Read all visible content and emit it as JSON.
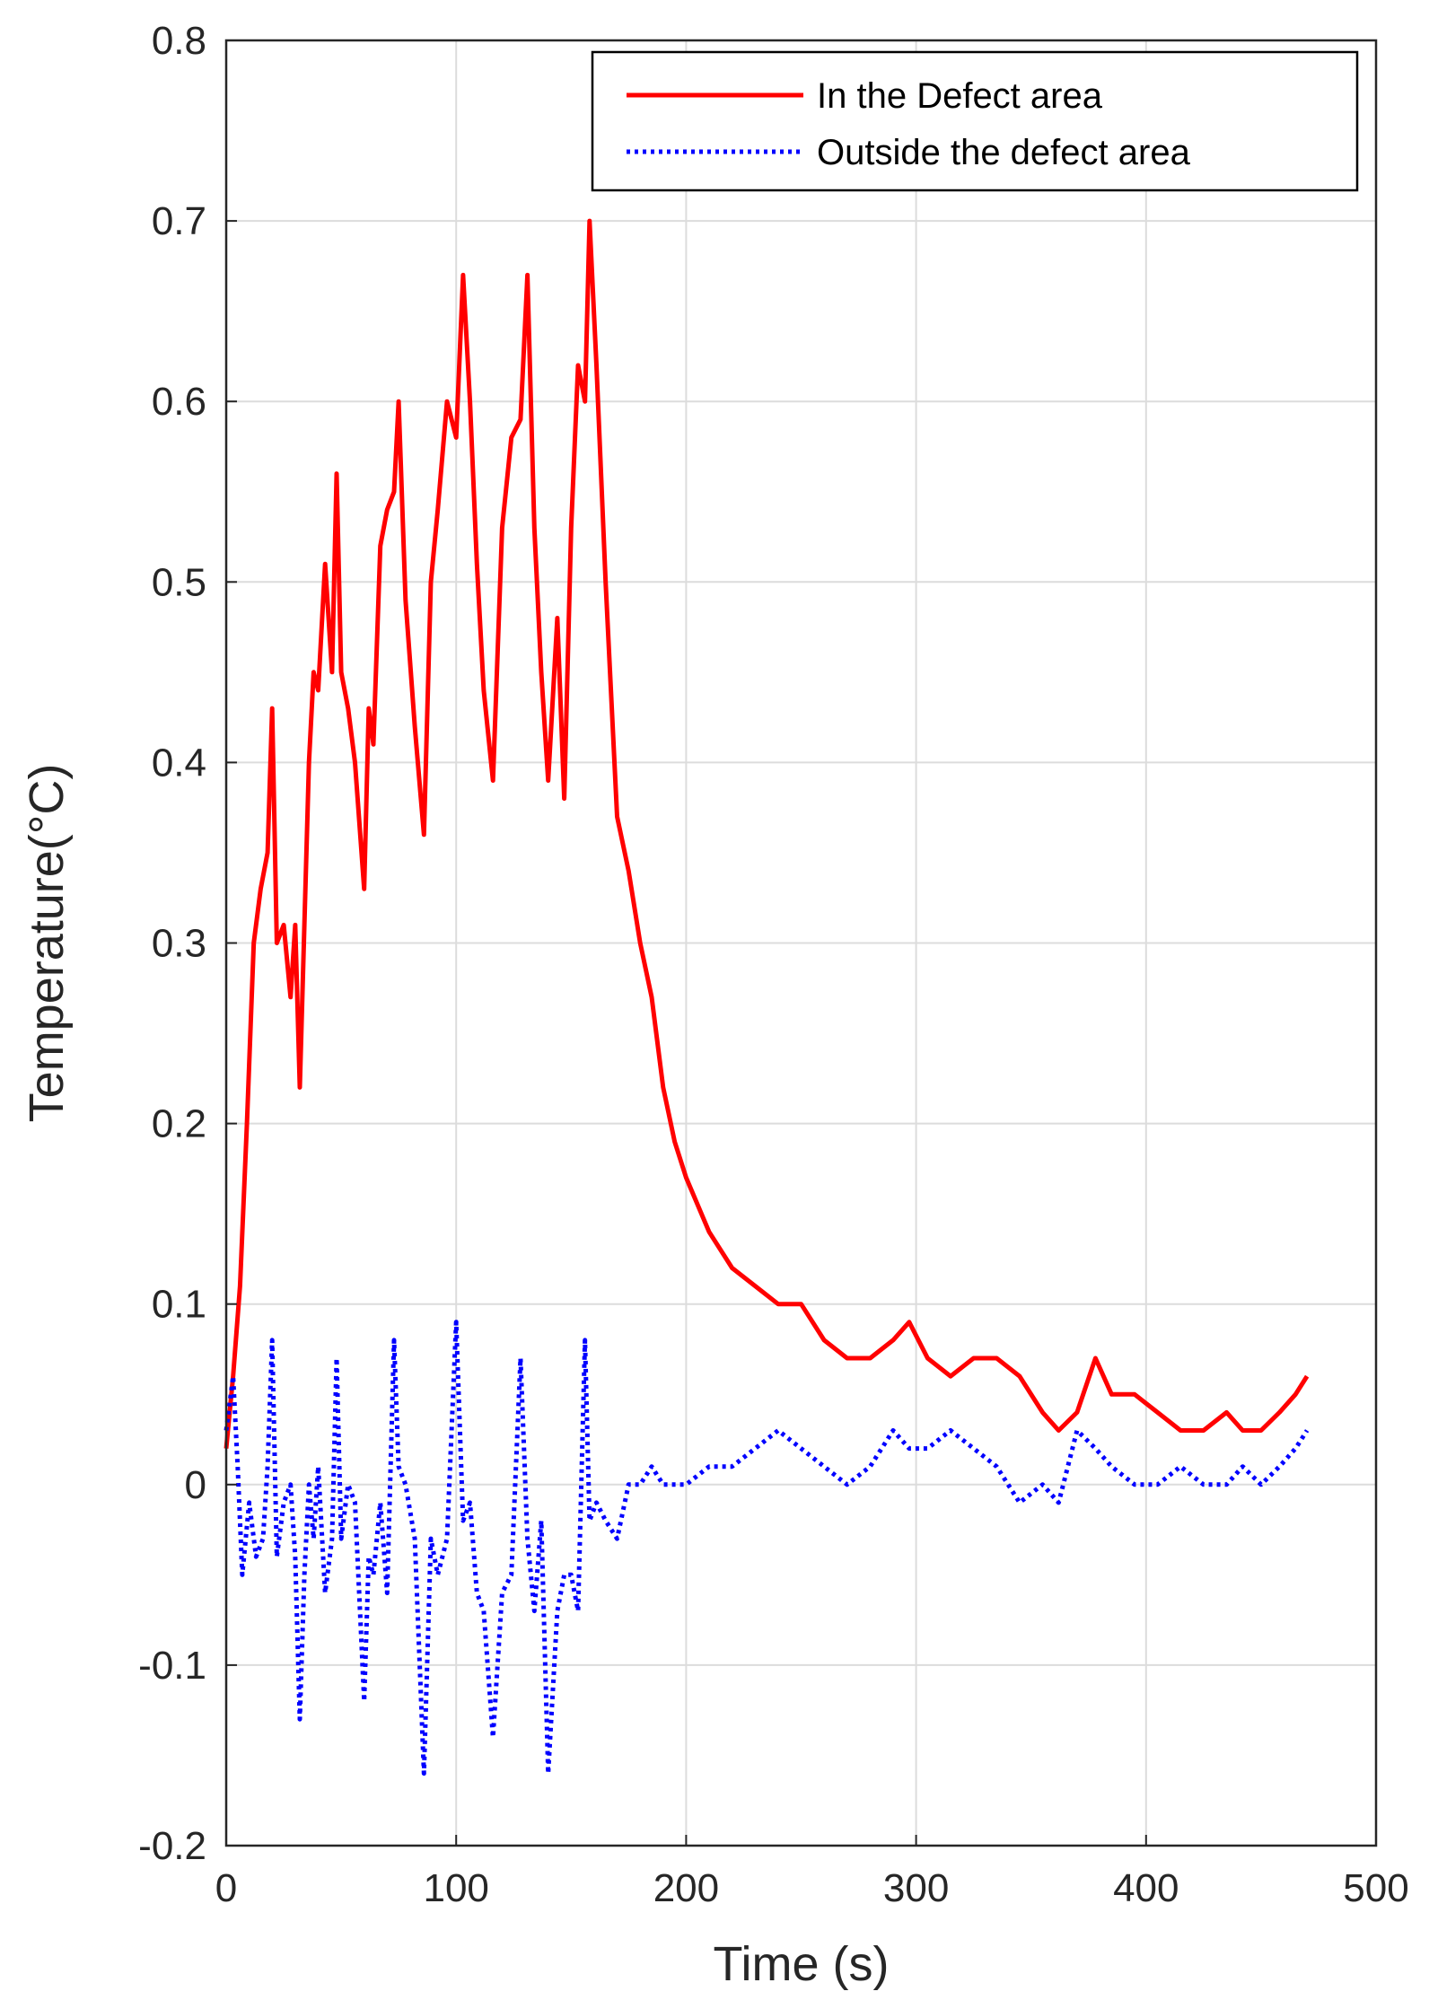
{
  "chart_data": {
    "type": "line",
    "xlabel": "Time (s)",
    "ylabel": "Temperature(°C)",
    "xlim": [
      0,
      500
    ],
    "ylim": [
      -0.2,
      0.8
    ],
    "xticks": [
      0,
      100,
      200,
      300,
      400,
      500
    ],
    "yticks": [
      -0.2,
      -0.1,
      0,
      0.1,
      0.2,
      0.3,
      0.4,
      0.5,
      0.6,
      0.7,
      0.8
    ],
    "xtick_labels": [
      "0",
      "100",
      "200",
      "300",
      "400",
      "500"
    ],
    "ytick_labels": [
      "-0.2",
      "-0.1",
      "0",
      "0.1",
      "0.2",
      "0.3",
      "0.4",
      "0.5",
      "0.6",
      "0.7",
      "0.8"
    ],
    "grid": true,
    "legend_position": "top-right",
    "series": [
      {
        "name": "In the Defect area",
        "color": "#ff0000",
        "line_style": "solid",
        "x": [
          0,
          3,
          6,
          9,
          12,
          15,
          18,
          20,
          22,
          25,
          28,
          30,
          32,
          34,
          36,
          38,
          40,
          43,
          46,
          48,
          50,
          53,
          56,
          60,
          62,
          64,
          67,
          70,
          73,
          75,
          78,
          82,
          86,
          89,
          92,
          96,
          100,
          103,
          106,
          109,
          112,
          116,
          120,
          124,
          128,
          131,
          134,
          137,
          140,
          144,
          147,
          150,
          153,
          156,
          158,
          161,
          165,
          170,
          175,
          180,
          185,
          190,
          195,
          200,
          210,
          220,
          230,
          240,
          250,
          260,
          270,
          280,
          290,
          297,
          305,
          315,
          325,
          335,
          345,
          355,
          362,
          370,
          378,
          385,
          395,
          405,
          415,
          425,
          435,
          442,
          450,
          458,
          465,
          470
        ],
        "y": [
          0.02,
          0.06,
          0.11,
          0.2,
          0.3,
          0.33,
          0.35,
          0.43,
          0.3,
          0.31,
          0.27,
          0.31,
          0.22,
          0.31,
          0.4,
          0.45,
          0.44,
          0.51,
          0.45,
          0.56,
          0.45,
          0.43,
          0.4,
          0.33,
          0.43,
          0.41,
          0.52,
          0.54,
          0.55,
          0.6,
          0.49,
          0.42,
          0.36,
          0.5,
          0.54,
          0.6,
          0.58,
          0.67,
          0.6,
          0.51,
          0.44,
          0.39,
          0.53,
          0.58,
          0.59,
          0.67,
          0.53,
          0.45,
          0.39,
          0.48,
          0.38,
          0.53,
          0.62,
          0.6,
          0.7,
          0.62,
          0.5,
          0.37,
          0.34,
          0.3,
          0.27,
          0.22,
          0.19,
          0.17,
          0.14,
          0.12,
          0.11,
          0.1,
          0.1,
          0.08,
          0.07,
          0.07,
          0.08,
          0.09,
          0.07,
          0.06,
          0.07,
          0.07,
          0.06,
          0.04,
          0.03,
          0.04,
          0.07,
          0.05,
          0.05,
          0.04,
          0.03,
          0.03,
          0.04,
          0.03,
          0.03,
          0.04,
          0.05,
          0.06
        ]
      },
      {
        "name": "Outside the defect area",
        "color": "#0000ff",
        "line_style": "dotted",
        "x": [
          0,
          3,
          5,
          7,
          10,
          13,
          16,
          18,
          20,
          22,
          25,
          28,
          30,
          32,
          34,
          36,
          38,
          40,
          43,
          46,
          48,
          50,
          53,
          56,
          60,
          62,
          64,
          67,
          70,
          73,
          75,
          78,
          82,
          86,
          89,
          92,
          96,
          100,
          103,
          106,
          109,
          112,
          116,
          120,
          124,
          128,
          131,
          134,
          137,
          140,
          144,
          147,
          150,
          153,
          156,
          158,
          161,
          165,
          170,
          175,
          180,
          185,
          190,
          195,
          200,
          210,
          220,
          230,
          240,
          250,
          260,
          270,
          280,
          290,
          297,
          305,
          315,
          325,
          335,
          345,
          355,
          362,
          370,
          378,
          385,
          395,
          405,
          415,
          425,
          435,
          442,
          450,
          458,
          465,
          470
        ],
        "y": [
          0.03,
          0.06,
          0.01,
          -0.05,
          -0.01,
          -0.04,
          -0.03,
          0.01,
          0.08,
          -0.04,
          -0.01,
          0.0,
          -0.04,
          -0.13,
          -0.05,
          0.0,
          -0.03,
          0.01,
          -0.06,
          -0.03,
          0.07,
          -0.03,
          0.0,
          -0.01,
          -0.12,
          -0.04,
          -0.05,
          -0.01,
          -0.06,
          0.08,
          0.01,
          0.0,
          -0.03,
          -0.16,
          -0.03,
          -0.05,
          -0.03,
          0.09,
          -0.02,
          -0.01,
          -0.06,
          -0.07,
          -0.14,
          -0.06,
          -0.05,
          0.07,
          -0.03,
          -0.07,
          -0.02,
          -0.16,
          -0.07,
          -0.05,
          -0.05,
          -0.07,
          0.08,
          -0.02,
          -0.01,
          -0.02,
          -0.03,
          0.0,
          0.0,
          0.01,
          0.0,
          0.0,
          0.0,
          0.01,
          0.01,
          0.02,
          0.03,
          0.02,
          0.01,
          0.0,
          0.01,
          0.03,
          0.02,
          0.02,
          0.03,
          0.02,
          0.01,
          -0.01,
          0.0,
          -0.01,
          0.03,
          0.02,
          0.01,
          0.0,
          0.0,
          0.01,
          0.0,
          0.0,
          0.01,
          0.0,
          0.01,
          0.02,
          0.03
        ]
      }
    ]
  }
}
